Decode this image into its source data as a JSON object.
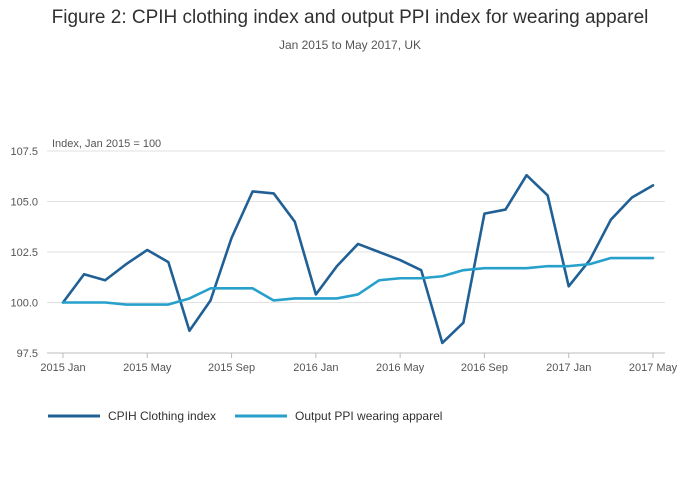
{
  "chart_data": {
    "type": "line",
    "title": "Figure 2: CPIH clothing index and output PPI index for wearing apparel",
    "subtitle": "Jan 2015 to May 2017, UK",
    "ylabel": "Index, Jan 2015 = 100",
    "xlabel": "",
    "ylim": [
      97.5,
      107.5
    ],
    "yticks": [
      97.5,
      100.0,
      102.5,
      105.0,
      107.5
    ],
    "ytick_labels": [
      "97.5",
      "100.0",
      "102.5",
      "105.0",
      "107.5"
    ],
    "grid": "horizontal",
    "legend_position": "bottom-left",
    "x": [
      "2015 Jan",
      "2015 Feb",
      "2015 Mar",
      "2015 Apr",
      "2015 May",
      "2015 Jun",
      "2015 Jul",
      "2015 Aug",
      "2015 Sep",
      "2015 Oct",
      "2015 Nov",
      "2015 Dec",
      "2016 Jan",
      "2016 Feb",
      "2016 Mar",
      "2016 Apr",
      "2016 May",
      "2016 Jun",
      "2016 Jul",
      "2016 Aug",
      "2016 Sep",
      "2016 Oct",
      "2016 Nov",
      "2016 Dec",
      "2017 Jan",
      "2017 Feb",
      "2017 Mar",
      "2017 Apr",
      "2017 May"
    ],
    "xtick_labels": [
      {
        "index": 0,
        "label": "2015 Jan"
      },
      {
        "index": 4,
        "label": "2015 May"
      },
      {
        "index": 8,
        "label": "2015 Sep"
      },
      {
        "index": 12,
        "label": "2016 Jan"
      },
      {
        "index": 16,
        "label": "2016 May"
      },
      {
        "index": 20,
        "label": "2016 Sep"
      },
      {
        "index": 24,
        "label": "2017 Jan"
      },
      {
        "index": 28,
        "label": "2017 May"
      }
    ],
    "series": [
      {
        "name": "CPIH Clothing index",
        "color": "#206095",
        "values": [
          100.0,
          101.4,
          101.1,
          101.9,
          102.6,
          102.0,
          98.6,
          100.1,
          103.2,
          105.5,
          105.4,
          104.0,
          100.4,
          101.8,
          102.9,
          102.5,
          102.1,
          101.6,
          98.0,
          99.0,
          104.4,
          104.6,
          106.3,
          105.3,
          100.8,
          102.1,
          104.1,
          105.2,
          105.8
        ]
      },
      {
        "name": "Output PPI wearing apparel",
        "color": "#27a0cc",
        "values": [
          100.0,
          100.0,
          100.0,
          99.9,
          99.9,
          99.9,
          100.2,
          100.7,
          100.7,
          100.7,
          100.1,
          100.2,
          100.2,
          100.2,
          100.4,
          101.1,
          101.2,
          101.2,
          101.3,
          101.6,
          101.7,
          101.7,
          101.7,
          101.8,
          101.8,
          101.9,
          102.2,
          102.2,
          102.2
        ]
      }
    ]
  }
}
